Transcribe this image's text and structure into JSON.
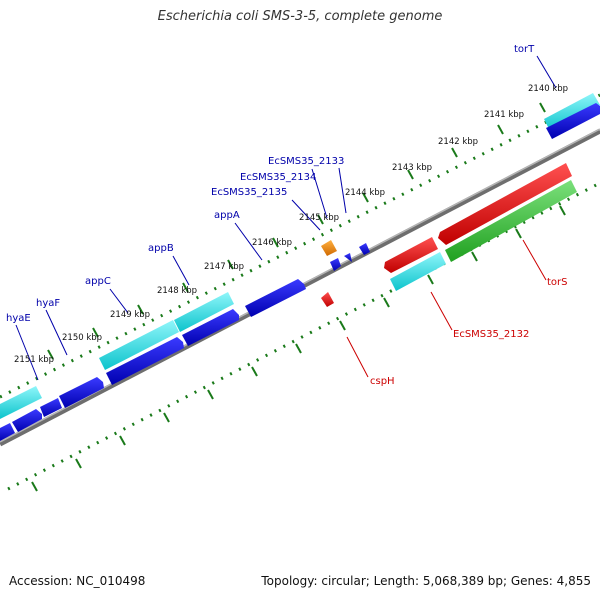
{
  "title": "Escherichia coli SMS-3-5, complete genome",
  "footer": {
    "accession": "Accession: NC_010498",
    "summary": "Topology: circular; Length: 5,068,389 bp; Genes: 4,855"
  },
  "colors": {
    "backbone": "#8c8c8c",
    "ticks": "#1a7a1a",
    "forward_gene": "#0000dd",
    "forward_cds": "#18e0e8",
    "reverse_gene": "#ee0000",
    "reverse_cds": "#2ec42e",
    "other": "#ff8800",
    "label_forward": "#0000aa",
    "label_reverse": "#cc0000"
  },
  "tick_labels": [
    "2140 kbp",
    "2141 kbp",
    "2142 kbp",
    "2143 kbp",
    "2144 kbp",
    "2145 kbp",
    "2146 kbp",
    "2147 kbp",
    "2148 kbp",
    "2149 kbp",
    "2150 kbp",
    "2151 kbp"
  ],
  "forward_labels": [
    "torT",
    "EcSMS35_2133",
    "EcSMS35_2134",
    "EcSMS35_2135",
    "appA",
    "appB",
    "appC",
    "hyaF",
    "hyaE"
  ],
  "reverse_labels": [
    "torS",
    "EcSMS35_2132",
    "cspH"
  ]
}
